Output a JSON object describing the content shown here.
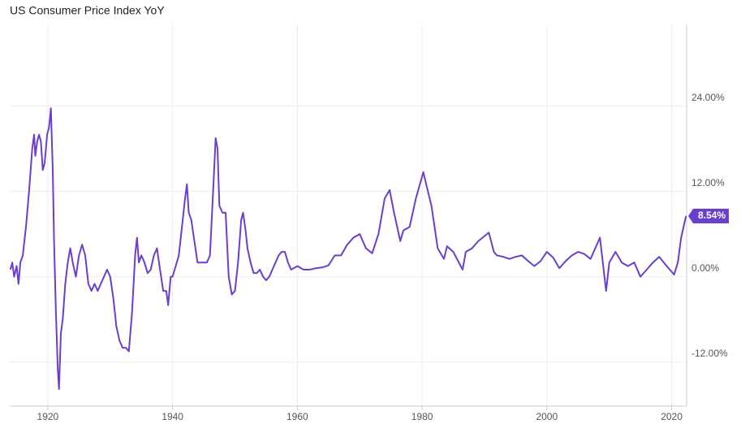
{
  "chart_data": {
    "type": "line",
    "title": "US Consumer Price Index YoY",
    "xlim": [
      1913.9,
      2022.4
    ],
    "xticks": [
      1920,
      1940,
      1960,
      1980,
      2000,
      2020
    ],
    "ylim": [
      -18.2,
      35.5
    ],
    "yticks": [
      {
        "value": -12,
        "label": "-12.00%"
      },
      {
        "value": 0,
        "label": "0.00%"
      },
      {
        "value": 12,
        "label": "12.00%"
      },
      {
        "value": 24,
        "label": "24.00%"
      }
    ],
    "grid": true,
    "series": [
      {
        "name": "US Consumer Price Index YoY",
        "color": "#6a3fd0",
        "x": [
          1914.0,
          1914.3,
          1914.6,
          1915.0,
          1915.3,
          1915.6,
          1916.0,
          1916.5,
          1917.0,
          1917.5,
          1917.8,
          1918.0,
          1918.3,
          1918.6,
          1918.9,
          1919.2,
          1919.5,
          1919.9,
          1920.2,
          1920.5,
          1920.8,
          1921.0,
          1921.3,
          1921.6,
          1921.8,
          1922.1,
          1922.4,
          1922.8,
          1923.2,
          1923.6,
          1924.0,
          1924.5,
          1925.0,
          1925.5,
          1926.0,
          1926.5,
          1927.0,
          1927.5,
          1928.0,
          1928.5,
          1929.0,
          1929.5,
          1930.0,
          1930.5,
          1931.0,
          1931.5,
          1932.0,
          1932.5,
          1933.0,
          1933.5,
          1934.0,
          1934.3,
          1934.6,
          1935.0,
          1935.5,
          1936.0,
          1936.5,
          1937.0,
          1937.5,
          1938.0,
          1938.5,
          1939.0,
          1939.3,
          1939.7,
          1940.0,
          1940.5,
          1941.0,
          1941.5,
          1942.0,
          1942.3,
          1942.6,
          1943.0,
          1943.5,
          1944.0,
          1944.5,
          1945.0,
          1945.5,
          1946.0,
          1946.5,
          1946.9,
          1947.2,
          1947.5,
          1948.0,
          1948.5,
          1949.0,
          1949.5,
          1950.0,
          1950.5,
          1951.0,
          1951.3,
          1951.7,
          1952.0,
          1952.5,
          1953.0,
          1953.5,
          1954.0,
          1954.5,
          1955.0,
          1955.5,
          1956.0,
          1956.5,
          1957.0,
          1957.5,
          1958.0,
          1958.5,
          1959.0,
          1960.0,
          1961,
          1962,
          1963,
          1964,
          1965,
          1966,
          1967,
          1968,
          1969,
          1970,
          1971,
          1972,
          1973,
          1974,
          1974.8,
          1975.5,
          1976.5,
          1977,
          1978,
          1979,
          1980.2,
          1980.8,
          1981.5,
          1982.5,
          1983.5,
          1984,
          1985,
          1986.5,
          1987,
          1988,
          1989,
          1990.7,
          1991.5,
          1992,
          1993,
          1994,
          1995,
          1996,
          1997,
          1998,
          1999,
          2000,
          2001,
          2002,
          2003,
          2004,
          2005,
          2006,
          2007,
          2008.5,
          2009.5,
          2010,
          2011,
          2012,
          2013,
          2014,
          2015,
          2016,
          2017,
          2018,
          2019,
          2020.4,
          2021,
          2021.5,
          2022.3
        ],
        "values": [
          1,
          2,
          0,
          1.5,
          -1,
          2,
          3,
          7,
          12,
          18,
          20,
          17,
          19,
          20,
          19,
          15,
          16,
          20,
          21,
          23.7,
          15,
          5,
          -5,
          -13,
          -15.8,
          -8,
          -6,
          -1,
          2,
          4,
          2,
          0,
          3,
          4.5,
          3,
          -1,
          -2,
          -1,
          -2,
          -1,
          0,
          1,
          0,
          -3,
          -7,
          -9,
          -10,
          -10,
          -10.5,
          -5,
          3,
          5.5,
          2,
          3,
          2,
          0.5,
          1,
          3,
          4,
          1,
          -2,
          -2,
          -4,
          0,
          0,
          1.5,
          3,
          7,
          11,
          13,
          9,
          8,
          5,
          2,
          2,
          2,
          2,
          3,
          12,
          19.5,
          18,
          10,
          9,
          9,
          0,
          -2.5,
          -2,
          2,
          8,
          9,
          6.5,
          4,
          2,
          0.5,
          0.5,
          1,
          0,
          -0.5,
          0,
          1,
          2,
          3,
          3.5,
          3.5,
          2,
          1,
          1.5,
          1,
          1,
          1.2,
          1.3,
          1.6,
          3,
          3,
          4.5,
          5.5,
          6,
          4,
          3.3,
          6,
          11,
          12.2,
          9,
          5,
          6.5,
          7,
          11,
          14.7,
          12.5,
          10,
          4,
          2.5,
          4.3,
          3.5,
          1,
          3.5,
          4,
          5,
          6.2,
          3.5,
          3,
          2.8,
          2.5,
          2.8,
          3,
          2.2,
          1.5,
          2.2,
          3.5,
          2.7,
          1.2,
          2.2,
          3,
          3.5,
          3.2,
          2.5,
          5.5,
          -2,
          2,
          3.5,
          2,
          1.5,
          2,
          0,
          1,
          2,
          2.8,
          1.7,
          0.3,
          2,
          5.4,
          8.54
        ],
        "value_labels": [
          null,
          null,
          null,
          null,
          null,
          null,
          null,
          null,
          null,
          null,
          null,
          null,
          null,
          null,
          null,
          null,
          null,
          null,
          null,
          null,
          null,
          null,
          null,
          null,
          null,
          null,
          null,
          null,
          null,
          null,
          null,
          null,
          null,
          null,
          null,
          null,
          null,
          null,
          null,
          null,
          null,
          null,
          null,
          null,
          null,
          null,
          null,
          null,
          null,
          null,
          null,
          null,
          null,
          null,
          null,
          null,
          null,
          null,
          null,
          null,
          null,
          null,
          null,
          null,
          null,
          null,
          null,
          null,
          null,
          null,
          null,
          null,
          null,
          null,
          null,
          null,
          null,
          null,
          null,
          null,
          null,
          null,
          null,
          null,
          null,
          null,
          null,
          null,
          null,
          null,
          null,
          null,
          null,
          null,
          null,
          null,
          null,
          null,
          null,
          null,
          null,
          null,
          null,
          null,
          null,
          null,
          null,
          null,
          null,
          null,
          null,
          null,
          null,
          null,
          null,
          null,
          null,
          null,
          null,
          null,
          null,
          null,
          null,
          null,
          null,
          null,
          null,
          null,
          null,
          null,
          null,
          null,
          null,
          null,
          null,
          null,
          null,
          null,
          null,
          null,
          null,
          null,
          null,
          null,
          null,
          null,
          null,
          null,
          null,
          null,
          null,
          null,
          null,
          null,
          null,
          null,
          null,
          null,
          null,
          null,
          null,
          null,
          null,
          null,
          null,
          null,
          null,
          null,
          null,
          null,
          null,
          "8.54%"
        ]
      }
    ]
  }
}
